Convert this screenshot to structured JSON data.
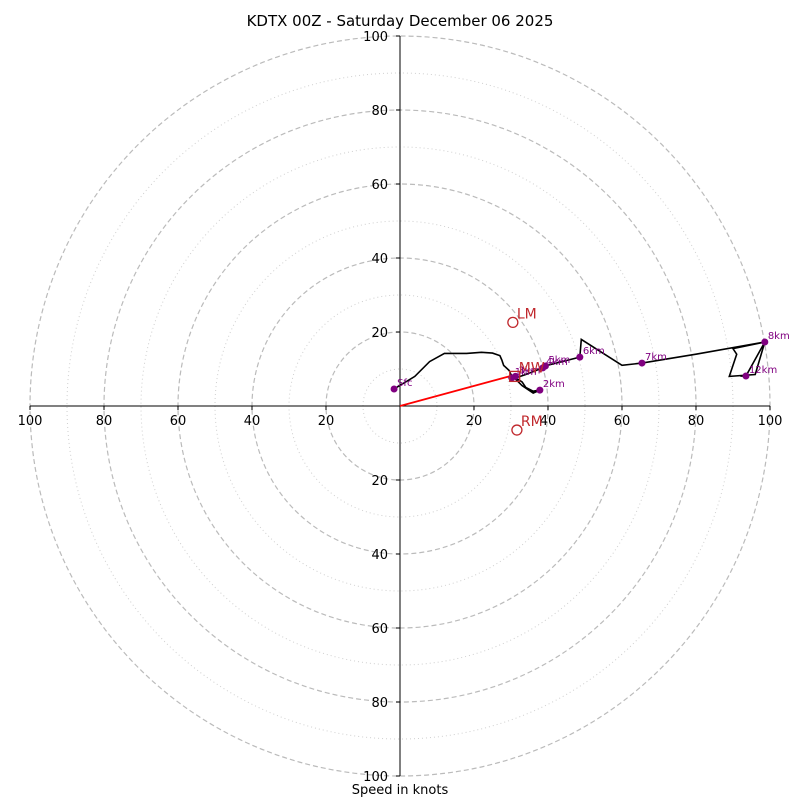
{
  "chart_data": {
    "type": "line",
    "title": "KDTX 00Z - Saturday December 06 2025",
    "xlabel": "Speed in knots",
    "ylabel": "",
    "xlim": [
      -100,
      100
    ],
    "ylim": [
      -100,
      100
    ],
    "tick_labels": [
      "100",
      "80",
      "60",
      "40",
      "20",
      "20",
      "40",
      "60",
      "80",
      "100"
    ],
    "rings_dashed": [
      20,
      40,
      60,
      80,
      100
    ],
    "rings_dotted": [
      10,
      30,
      50,
      70,
      90
    ],
    "hodograph": {
      "u": [
        -1.6,
        4,
        8,
        12,
        18,
        22,
        25,
        27,
        27.5,
        28,
        29.5,
        30,
        31,
        33,
        34,
        36,
        37.8,
        36,
        33,
        31,
        34,
        38.6,
        39,
        48.6,
        49,
        60,
        65.4,
        80,
        98.6,
        90,
        91,
        89,
        96,
        98.6,
        93.5,
        92
      ],
      "v": [
        4.6,
        8,
        12,
        14.2,
        14.2,
        14.5,
        14.3,
        13.6,
        12.5,
        11,
        9.6,
        8.5,
        7.8,
        6.5,
        5,
        4,
        4.3,
        3.5,
        5.5,
        7.5,
        8.5,
        10.3,
        10.8,
        13.2,
        18,
        11,
        11.6,
        14,
        17.3,
        15.5,
        14,
        8,
        8.5,
        17.3,
        8.1,
        8.1
      ]
    },
    "height_markers": [
      {
        "label": "Sfc",
        "u": -1.6,
        "v": 4.6
      },
      {
        "label": "1km",
        "u": 30.2,
        "v": 7.6
      },
      {
        "label": "2km",
        "u": 37.8,
        "v": 4.3
      },
      {
        "label": "3km",
        "u": 31.2,
        "v": 8.0
      },
      {
        "label": "4km",
        "u": 38.6,
        "v": 10.3
      },
      {
        "label": "5km",
        "u": 39.3,
        "v": 10.8
      },
      {
        "label": "6km",
        "u": 48.6,
        "v": 13.2
      },
      {
        "label": "7km",
        "u": 65.4,
        "v": 11.6
      },
      {
        "label": "8km",
        "u": 98.6,
        "v": 17.3
      },
      {
        "label": "12km",
        "u": 93.5,
        "v": 8.1
      }
    ],
    "storm_motions": [
      {
        "label": "LM",
        "u": 30.5,
        "v": 22.6
      },
      {
        "label": "RM",
        "u": 31.6,
        "v": -6.5
      },
      {
        "label": "MW",
        "u": 31.0,
        "v": 8.0
      }
    ],
    "shear_vector": {
      "u0": 0,
      "v0": 0,
      "u1": 30.2,
      "v1": 8.2
    },
    "colors": {
      "hodo": "#000000",
      "marker": "#800080",
      "storm": "#c0282d",
      "shear": "#ff0000",
      "ring": "#bbbbbb"
    }
  }
}
